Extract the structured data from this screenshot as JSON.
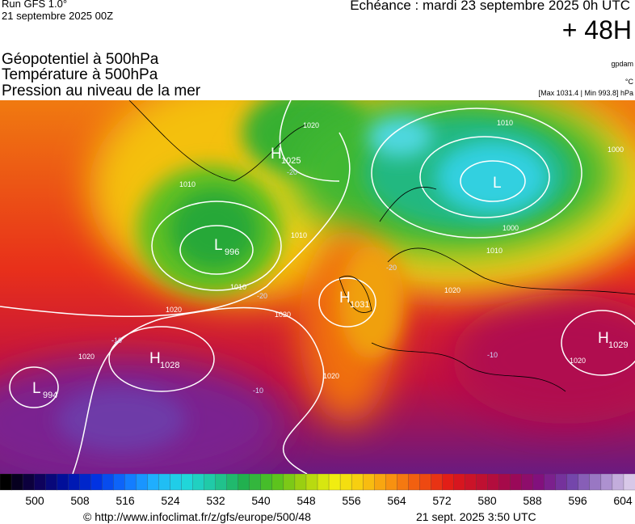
{
  "header": {
    "run": "Run GFS 1.0°",
    "date": "21 septembre 2025 00Z",
    "echeance": "Echéance : mardi 23 septembre 2025 0h UTC",
    "lead": "+ 48H"
  },
  "layers": [
    "Géopotentiel à 500hPa",
    "Température à 500hPa",
    "Pression au niveau de la mer"
  ],
  "units": {
    "geopotential": "gpdam",
    "temperature": "°C",
    "pressure": "[Max 1031.4 | Min 993.8] hPa"
  },
  "centers": [
    {
      "type": "H",
      "value": 1025
    },
    {
      "type": "L",
      "value": 996
    },
    {
      "type": "L"
    },
    {
      "type": "H",
      "value": 1031
    },
    {
      "type": "H",
      "value": 1028
    },
    {
      "type": "L",
      "value": 994
    },
    {
      "type": "H",
      "value": 1029
    }
  ],
  "isobar_labels": [
    1020,
    1010,
    1000,
    1010,
    1010,
    1010,
    1020,
    1020,
    1020,
    1000,
    1010,
    1020,
    1020,
    1020
  ],
  "temperature_labels": [
    -20,
    -20,
    -20,
    -10,
    -10,
    -10
  ],
  "colorbar": {
    "labels": [
      500,
      508,
      516,
      524,
      532,
      540,
      548,
      556,
      564,
      572,
      580,
      588,
      596,
      604
    ]
  },
  "footer": {
    "url": "© http://www.infoclimat.fr/z/gfs/europe/500/48",
    "timestamp": "21 sept. 2025  3:50 UTC"
  }
}
